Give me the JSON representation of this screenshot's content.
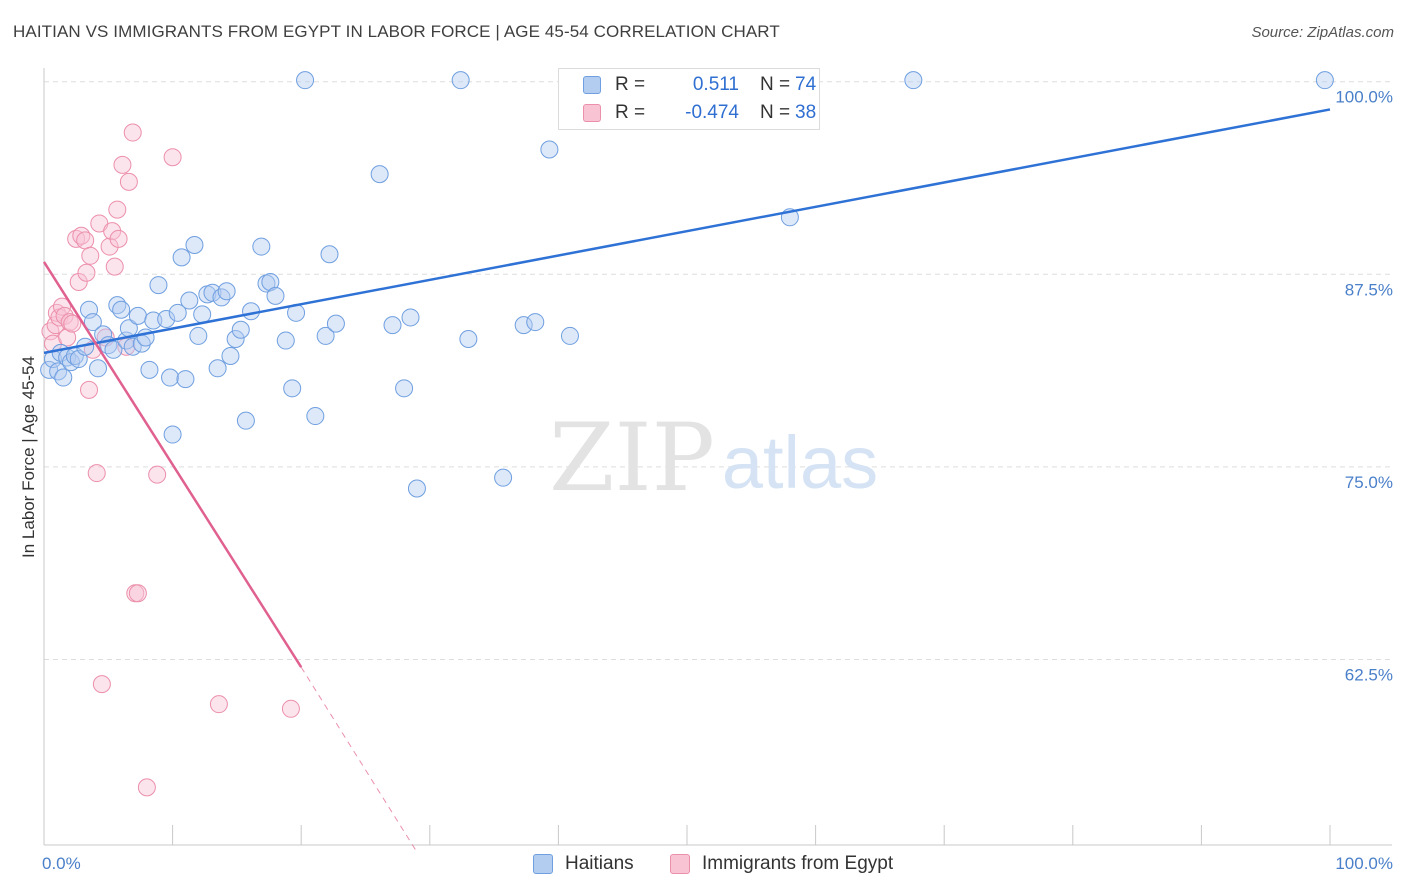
{
  "title": "HAITIAN VS IMMIGRANTS FROM EGYPT IN LABOR FORCE | AGE 45-54 CORRELATION CHART",
  "source": "Source: ZipAtlas.com",
  "watermark": {
    "zip": "ZIP",
    "atlas": "atlas"
  },
  "colors": {
    "blue_fill": "#b3cdf1",
    "blue_stroke": "#6f9fe0",
    "blue_line": "#2f72d6",
    "pink_fill": "#f8c4d4",
    "pink_stroke": "#ec8fab",
    "pink_line": "#e0608f",
    "axis_label": "#4a7fc9",
    "grid": "#dddddd"
  },
  "legend": {
    "rows": [
      {
        "r_label": "R =",
        "r_value": "0.511",
        "n_label": "N =",
        "n_value": "74",
        "color": "blue"
      },
      {
        "r_label": "R =",
        "r_value": "-0.474",
        "n_label": "N =",
        "n_value": "38",
        "color": "pink"
      }
    ]
  },
  "bottom_legend": [
    {
      "label": "Haitians",
      "color": "blue"
    },
    {
      "label": "Immigrants from Egypt",
      "color": "pink"
    }
  ],
  "chart_data": {
    "type": "scatter",
    "title": "HAITIAN VS IMMIGRANTS FROM EGYPT IN LABOR FORCE | AGE 45-54 CORRELATION CHART",
    "xlabel": "",
    "ylabel": "In Labor Force | Age 45-54",
    "xlim": [
      0,
      100
    ],
    "ylim": [
      50,
      101
    ],
    "x_tick_labels": [
      {
        "value": 0,
        "label": "0.0%"
      },
      {
        "value": 100,
        "label": "100.0%"
      }
    ],
    "y_ticks": [
      {
        "value": 100,
        "label": "100.0%"
      },
      {
        "value": 87.5,
        "label": "87.5%"
      },
      {
        "value": 75,
        "label": "75.0%"
      },
      {
        "value": 62.5,
        "label": "62.5%"
      }
    ],
    "x_minor_ticks": [
      0,
      10,
      20,
      30,
      40,
      50,
      60,
      70,
      80,
      90,
      100
    ],
    "series": [
      {
        "name": "Haitians",
        "color": "blue",
        "points": [
          [
            0.4,
            81.3
          ],
          [
            0.7,
            82.0
          ],
          [
            1.1,
            81.2
          ],
          [
            1.3,
            82.4
          ],
          [
            1.5,
            80.8
          ],
          [
            1.8,
            82.1
          ],
          [
            2.1,
            81.8
          ],
          [
            2.4,
            82.2
          ],
          [
            2.7,
            82.0
          ],
          [
            3.2,
            82.8
          ],
          [
            3.5,
            85.2
          ],
          [
            3.8,
            84.4
          ],
          [
            4.2,
            81.4
          ],
          [
            4.6,
            83.6
          ],
          [
            5.0,
            82.9
          ],
          [
            5.4,
            82.6
          ],
          [
            5.7,
            85.5
          ],
          [
            6.0,
            85.2
          ],
          [
            6.4,
            83.2
          ],
          [
            6.6,
            84.0
          ],
          [
            6.9,
            82.8
          ],
          [
            7.3,
            84.8
          ],
          [
            7.6,
            83.0
          ],
          [
            7.9,
            83.4
          ],
          [
            8.2,
            81.3
          ],
          [
            8.5,
            84.5
          ],
          [
            8.9,
            86.8
          ],
          [
            9.5,
            84.6
          ],
          [
            9.8,
            80.8
          ],
          [
            10.0,
            77.1
          ],
          [
            10.4,
            85.0
          ],
          [
            10.7,
            88.6
          ],
          [
            11.0,
            80.7
          ],
          [
            11.3,
            85.8
          ],
          [
            11.7,
            89.4
          ],
          [
            12.0,
            83.5
          ],
          [
            12.3,
            84.9
          ],
          [
            12.7,
            86.2
          ],
          [
            13.1,
            86.3
          ],
          [
            13.5,
            81.4
          ],
          [
            13.8,
            86.0
          ],
          [
            14.2,
            86.4
          ],
          [
            14.5,
            82.2
          ],
          [
            14.9,
            83.3
          ],
          [
            15.3,
            83.9
          ],
          [
            15.7,
            78.0
          ],
          [
            16.1,
            85.1
          ],
          [
            16.9,
            89.3
          ],
          [
            17.3,
            86.9
          ],
          [
            17.6,
            87.0
          ],
          [
            18.0,
            86.1
          ],
          [
            18.8,
            83.2
          ],
          [
            19.3,
            80.1
          ],
          [
            19.6,
            85.0
          ],
          [
            20.3,
            100.1
          ],
          [
            21.1,
            78.3
          ],
          [
            21.9,
            83.5
          ],
          [
            22.2,
            88.8
          ],
          [
            22.7,
            84.3
          ],
          [
            26.1,
            94.0
          ],
          [
            27.1,
            84.2
          ],
          [
            28.0,
            80.1
          ],
          [
            28.5,
            84.7
          ],
          [
            29.0,
            73.6
          ],
          [
            32.4,
            100.1
          ],
          [
            33.0,
            83.3
          ],
          [
            35.7,
            74.3
          ],
          [
            37.3,
            84.2
          ],
          [
            38.2,
            84.4
          ],
          [
            39.3,
            95.6
          ],
          [
            40.9,
            83.5
          ],
          [
            58.0,
            91.2
          ],
          [
            67.6,
            100.1
          ],
          [
            99.6,
            100.1
          ]
        ],
        "trendline": {
          "x": [
            0,
            100
          ],
          "y": [
            82.4,
            98.2
          ]
        }
      },
      {
        "name": "Immigrants from Egypt",
        "color": "pink",
        "points": [
          [
            0.5,
            83.8
          ],
          [
            0.7,
            83.0
          ],
          [
            0.9,
            84.2
          ],
          [
            1.0,
            85.0
          ],
          [
            1.2,
            84.7
          ],
          [
            1.4,
            85.4
          ],
          [
            1.6,
            84.8
          ],
          [
            1.8,
            83.4
          ],
          [
            2.0,
            84.4
          ],
          [
            2.2,
            84.3
          ],
          [
            2.5,
            89.8
          ],
          [
            2.7,
            87.0
          ],
          [
            2.9,
            90.0
          ],
          [
            3.2,
            89.7
          ],
          [
            3.3,
            87.6
          ],
          [
            3.5,
            80.0
          ],
          [
            3.6,
            88.7
          ],
          [
            3.8,
            82.6
          ],
          [
            4.1,
            74.6
          ],
          [
            4.3,
            90.8
          ],
          [
            4.5,
            60.9
          ],
          [
            4.8,
            83.4
          ],
          [
            5.1,
            89.3
          ],
          [
            5.3,
            90.3
          ],
          [
            5.5,
            88.0
          ],
          [
            5.7,
            91.7
          ],
          [
            5.8,
            89.8
          ],
          [
            6.1,
            94.6
          ],
          [
            6.4,
            82.8
          ],
          [
            6.6,
            93.5
          ],
          [
            6.9,
            96.7
          ],
          [
            7.1,
            66.8
          ],
          [
            7.3,
            66.8
          ],
          [
            8.0,
            54.2
          ],
          [
            8.8,
            74.5
          ],
          [
            10.0,
            95.1
          ],
          [
            13.6,
            59.6
          ],
          [
            19.2,
            59.3
          ]
        ],
        "trendline": {
          "x": [
            0,
            20
          ],
          "y": [
            88.3,
            62.0
          ],
          "dashed_extension": {
            "x": [
              20,
              29
            ],
            "y": [
              62.0,
              50.0
            ]
          }
        }
      }
    ]
  }
}
